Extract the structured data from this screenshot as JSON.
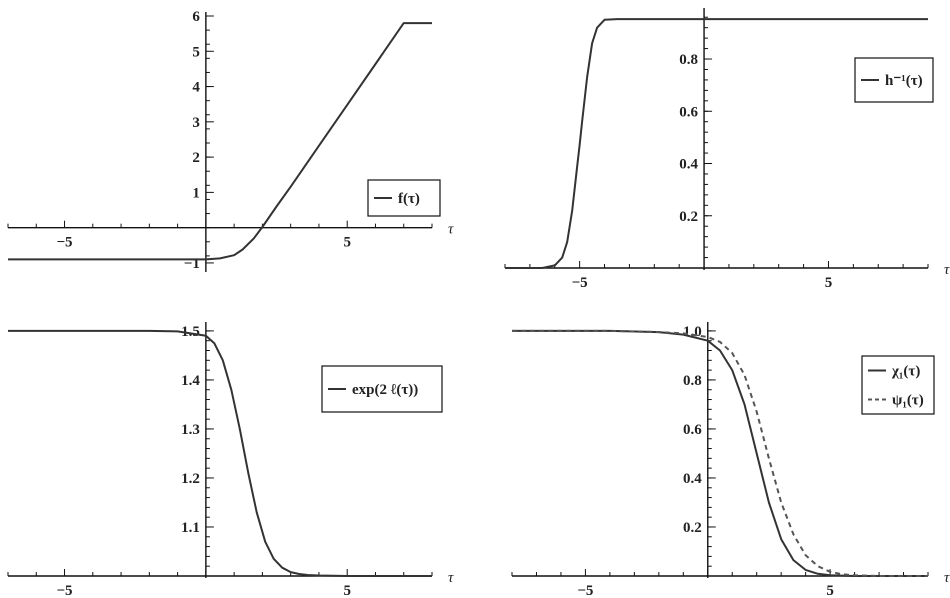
{
  "chart_data": [
    {
      "type": "line",
      "panel": "top-left",
      "xlabel": "τ",
      "xlim": [
        -7,
        8
      ],
      "ylim": [
        -1.2,
        6
      ],
      "xticks": [
        {
          "v": -5,
          "label": "−5"
        },
        {
          "v": 5,
          "label": "5"
        }
      ],
      "yticks": [
        {
          "v": -1,
          "label": "−1"
        },
        {
          "v": 1,
          "label": "1"
        },
        {
          "v": 2,
          "label": "2"
        },
        {
          "v": 3,
          "label": "3"
        },
        {
          "v": 4,
          "label": "4"
        },
        {
          "v": 5,
          "label": "5"
        },
        {
          "v": 6,
          "label": "6"
        }
      ],
      "legend_placement": "right",
      "series": [
        {
          "name": "f(τ)",
          "style": "solid",
          "color": "#333333",
          "x": [
            -7,
            -5,
            -3,
            -1,
            0,
            0.5,
            1,
            1.3,
            1.7,
            2,
            2.5,
            3,
            4,
            5,
            6,
            7,
            8
          ],
          "y": [
            -0.9,
            -0.9,
            -0.9,
            -0.9,
            -0.9,
            -0.87,
            -0.78,
            -0.62,
            -0.3,
            0.02,
            0.6,
            1.16,
            2.32,
            3.48,
            4.64,
            5.8,
            5.8
          ]
        }
      ]
    },
    {
      "type": "line",
      "panel": "top-right",
      "xlabel": "τ",
      "xlim": [
        -8,
        9
      ],
      "ylim": [
        0,
        0.98
      ],
      "xticks": [
        {
          "v": -5,
          "label": "−5"
        },
        {
          "v": 5,
          "label": "5"
        }
      ],
      "yticks": [
        {
          "v": 0.2,
          "label": "0.2"
        },
        {
          "v": 0.4,
          "label": "0.4"
        },
        {
          "v": 0.6,
          "label": "0.6"
        },
        {
          "v": 0.8,
          "label": "0.8"
        }
      ],
      "legend_placement": "top-right",
      "series": [
        {
          "name": "h⁻¹(τ)",
          "style": "solid",
          "color": "#333333",
          "x": [
            -8,
            -6.5,
            -6,
            -5.7,
            -5.5,
            -5.3,
            -5.1,
            -5,
            -4.9,
            -4.7,
            -4.5,
            -4.3,
            -4,
            -3.5,
            -2,
            0,
            5,
            9
          ],
          "y": [
            0,
            0.0,
            0.01,
            0.04,
            0.1,
            0.22,
            0.39,
            0.47,
            0.56,
            0.73,
            0.86,
            0.92,
            0.95,
            0.953,
            0.953,
            0.953,
            0.953,
            0.953
          ]
        }
      ]
    },
    {
      "type": "line",
      "panel": "bottom-left",
      "xlabel": "τ",
      "xlim": [
        -7,
        8
      ],
      "ylim": [
        1.0,
        1.51
      ],
      "xticks": [
        {
          "v": -5,
          "label": "−5"
        },
        {
          "v": 5,
          "label": "5"
        }
      ],
      "yticks": [
        {
          "v": 1.1,
          "label": "1.1"
        },
        {
          "v": 1.2,
          "label": "1.2"
        },
        {
          "v": 1.3,
          "label": "1.3"
        },
        {
          "v": 1.4,
          "label": "1.4"
        },
        {
          "v": 1.5,
          "label": "1.5"
        }
      ],
      "legend_placement": "right",
      "series": [
        {
          "name": "exp(2 ℓ(τ))",
          "style": "solid",
          "color": "#333333",
          "x": [
            -7,
            -2,
            -1,
            0,
            0.3,
            0.6,
            0.9,
            1.2,
            1.5,
            1.8,
            2.1,
            2.4,
            2.7,
            3,
            3.3,
            3.6,
            4,
            5,
            8
          ],
          "y": [
            1.5,
            1.5,
            1.499,
            1.49,
            1.475,
            1.44,
            1.38,
            1.3,
            1.21,
            1.13,
            1.07,
            1.035,
            1.017,
            1.008,
            1.004,
            1.002,
            1.001,
            1.0,
            1.0
          ]
        }
      ]
    },
    {
      "type": "line",
      "panel": "bottom-right",
      "xlabel": "τ",
      "xlim": [
        -8,
        9
      ],
      "ylim": [
        0,
        1.02
      ],
      "xticks": [
        {
          "v": -5,
          "label": "−5"
        },
        {
          "v": 5,
          "label": "5"
        }
      ],
      "yticks": [
        {
          "v": 0.2,
          "label": "0.2"
        },
        {
          "v": 0.4,
          "label": "0.4"
        },
        {
          "v": 0.6,
          "label": "0.6"
        },
        {
          "v": 0.8,
          "label": "0.8"
        },
        {
          "v": 1.0,
          "label": "1.0"
        }
      ],
      "legend_placement": "top-right",
      "series": [
        {
          "name": "χ₁(τ)",
          "style": "solid",
          "color": "#333333",
          "x": [
            -8,
            -4,
            -2,
            -1,
            0,
            0.5,
            1,
            1.5,
            2,
            2.5,
            3,
            3.5,
            4,
            4.5,
            5,
            6,
            9
          ],
          "y": [
            1.0,
            1.0,
            0.995,
            0.985,
            0.96,
            0.92,
            0.84,
            0.7,
            0.5,
            0.3,
            0.15,
            0.065,
            0.025,
            0.009,
            0.003,
            0.0,
            0.0
          ]
        },
        {
          "name": "ψ₁(τ)",
          "style": "dashed",
          "color": "#555555",
          "x": [
            -8,
            -4,
            -2,
            -1,
            0,
            0.5,
            1,
            1.5,
            2,
            2.5,
            3,
            3.5,
            4,
            4.5,
            5,
            5.5,
            6,
            7,
            9
          ],
          "y": [
            1.0,
            1.0,
            0.995,
            0.99,
            0.975,
            0.955,
            0.91,
            0.82,
            0.67,
            0.48,
            0.3,
            0.17,
            0.085,
            0.04,
            0.017,
            0.007,
            0.003,
            0.0,
            0.0
          ]
        }
      ]
    }
  ]
}
